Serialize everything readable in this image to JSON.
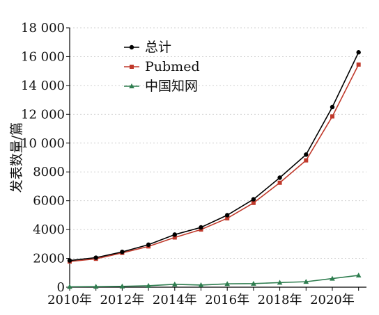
{
  "chart_data": {
    "type": "line",
    "ylabel": "发表数量/篇",
    "xlabel": "",
    "title": "",
    "ylim": [
      0,
      18000
    ],
    "xlim": [
      2010,
      2021.3
    ],
    "x": [
      2010,
      2011,
      2012,
      2013,
      2014,
      2015,
      2016,
      2017,
      2018,
      2019,
      2020,
      2021
    ],
    "x_ticks": [
      2010,
      2012,
      2014,
      2016,
      2018,
      2020
    ],
    "x_tick_labels": [
      "2010年",
      "2012年",
      "2014年",
      "2016年",
      "2018年",
      "2020年"
    ],
    "y_ticks": [
      0,
      2000,
      4000,
      6000,
      8000,
      10000,
      12000,
      14000,
      16000,
      18000
    ],
    "y_tick_labels": [
      "0",
      "2000",
      "4000",
      "6000",
      "8000",
      "10 000",
      "12 000",
      "14 000",
      "16 000",
      "18 000"
    ],
    "grid": "horizontal dotted",
    "legend_position": "top-left",
    "series": [
      {
        "name": "总计",
        "color": "#000000",
        "marker": "circle",
        "values": [
          1850,
          2050,
          2450,
          2950,
          3650,
          4150,
          5000,
          6100,
          7600,
          9200,
          12500,
          16300
        ]
      },
      {
        "name": "Pubmed",
        "color": "#c0392b",
        "marker": "square",
        "values": [
          1780,
          1970,
          2380,
          2830,
          3450,
          4000,
          4780,
          5850,
          7250,
          8800,
          11850,
          15450
        ]
      },
      {
        "name": "中国知网",
        "color": "#2e7d4f",
        "marker": "triangle",
        "values": [
          30,
          40,
          60,
          100,
          200,
          150,
          230,
          250,
          320,
          380,
          600,
          820
        ]
      }
    ]
  }
}
